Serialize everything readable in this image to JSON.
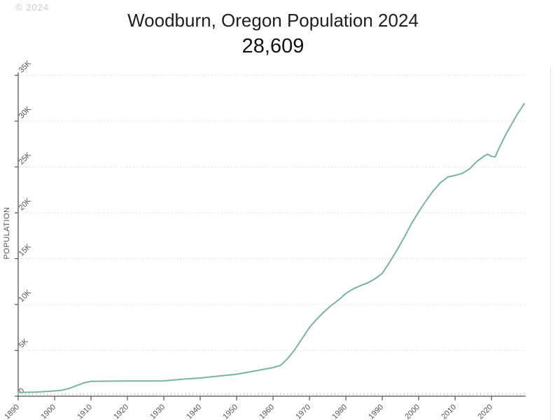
{
  "watermark": "© 2024",
  "chart_data": {
    "type": "line",
    "title": "Woodburn, Oregon Population 2024",
    "subtitle": "28,609",
    "ylabel": "POPULATION",
    "xlabel": "",
    "legend": "none",
    "grid": "dotted-horizontal",
    "xlim": [
      1890,
      2029.2
    ],
    "ylim": [
      0,
      35000
    ],
    "x_ticks": [
      1890,
      1900,
      1910,
      1920,
      1930,
      1940,
      1950,
      1960,
      1970,
      1980,
      1990,
      2000,
      2010,
      2020
    ],
    "x_tick_labels": [
      "1890",
      "1900",
      "1910",
      "1920",
      "1930",
      "1940",
      "1950",
      "1960",
      "1970",
      "1980",
      "1990",
      "2000",
      "2010",
      "2020"
    ],
    "y_ticks": [
      0,
      5000,
      10000,
      15000,
      20000,
      25000,
      30000,
      35000
    ],
    "y_tick_labels": [
      "0",
      "5K",
      "10K",
      "15K",
      "20K",
      "25K",
      "30K",
      "35K"
    ],
    "series": [
      {
        "name": "Population",
        "color": "#76b5a3",
        "points": [
          [
            1890,
            405
          ],
          [
            1895,
            450
          ],
          [
            1900,
            576
          ],
          [
            1902,
            650
          ],
          [
            1904,
            850
          ],
          [
            1906,
            1150
          ],
          [
            1908,
            1450
          ],
          [
            1910,
            1616
          ],
          [
            1915,
            1640
          ],
          [
            1920,
            1655
          ],
          [
            1925,
            1665
          ],
          [
            1930,
            1675
          ],
          [
            1935,
            1850
          ],
          [
            1940,
            1982
          ],
          [
            1945,
            2200
          ],
          [
            1950,
            2395
          ],
          [
            1955,
            2750
          ],
          [
            1960,
            3120
          ],
          [
            1962,
            3350
          ],
          [
            1964,
            4100
          ],
          [
            1966,
            5100
          ],
          [
            1968,
            6300
          ],
          [
            1970,
            7495
          ],
          [
            1972,
            8400
          ],
          [
            1974,
            9200
          ],
          [
            1976,
            9900
          ],
          [
            1978,
            10500
          ],
          [
            1980,
            11196
          ],
          [
            1982,
            11700
          ],
          [
            1984,
            12050
          ],
          [
            1986,
            12350
          ],
          [
            1988,
            12800
          ],
          [
            1990,
            13404
          ],
          [
            1992,
            14600
          ],
          [
            1994,
            15900
          ],
          [
            1996,
            17300
          ],
          [
            1998,
            18800
          ],
          [
            2000,
            20100
          ],
          [
            2002,
            21300
          ],
          [
            2004,
            22400
          ],
          [
            2006,
            23300
          ],
          [
            2008,
            23900
          ],
          [
            2010,
            24080
          ],
          [
            2012,
            24300
          ],
          [
            2014,
            24800
          ],
          [
            2016,
            25600
          ],
          [
            2018,
            26200
          ],
          [
            2019,
            26400
          ],
          [
            2020,
            26150
          ],
          [
            2021,
            26100
          ],
          [
            2022,
            27000
          ],
          [
            2023,
            27800
          ],
          [
            2024,
            28609
          ],
          [
            2025,
            29300
          ],
          [
            2026,
            30000
          ],
          [
            2027,
            30700
          ],
          [
            2028,
            31300
          ],
          [
            2029,
            31900
          ]
        ]
      }
    ]
  }
}
